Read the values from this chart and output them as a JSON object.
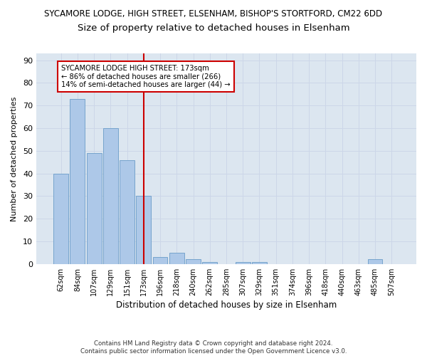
{
  "title_line1": "SYCAMORE LODGE, HIGH STREET, ELSENHAM, BISHOP'S STORTFORD, CM22 6DD",
  "title_line2": "Size of property relative to detached houses in Elsenham",
  "xlabel": "Distribution of detached houses by size in Elsenham",
  "ylabel": "Number of detached properties",
  "footnote": "Contains HM Land Registry data © Crown copyright and database right 2024.\nContains public sector information licensed under the Open Government Licence v3.0.",
  "categories": [
    "62sqm",
    "84sqm",
    "107sqm",
    "129sqm",
    "151sqm",
    "173sqm",
    "196sqm",
    "218sqm",
    "240sqm",
    "262sqm",
    "285sqm",
    "307sqm",
    "329sqm",
    "351sqm",
    "374sqm",
    "396sqm",
    "418sqm",
    "440sqm",
    "463sqm",
    "485sqm",
    "507sqm"
  ],
  "values": [
    40,
    73,
    49,
    60,
    46,
    30,
    3,
    5,
    2,
    1,
    0,
    1,
    1,
    0,
    0,
    0,
    0,
    0,
    0,
    2,
    0
  ],
  "bar_color": "#adc8e8",
  "bar_edge_color": "#6a9cc8",
  "highlight_index": 5,
  "highlight_line_color": "#cc0000",
  "annotation_box_color": "#cc0000",
  "annotation_text": "SYCAMORE LODGE HIGH STREET: 173sqm\n← 86% of detached houses are smaller (266)\n14% of semi-detached houses are larger (44) →",
  "ylim": [
    0,
    93
  ],
  "yticks": [
    0,
    10,
    20,
    30,
    40,
    50,
    60,
    70,
    80,
    90
  ],
  "grid_color": "#ccd6e8",
  "background_color": "#dce6f0",
  "annotation_fontsize": 7.2,
  "title1_fontsize": 8.5,
  "title2_fontsize": 9.5,
  "xlabel_fontsize": 8.5,
  "ylabel_fontsize": 8.0,
  "footnote_fontsize": 6.2
}
